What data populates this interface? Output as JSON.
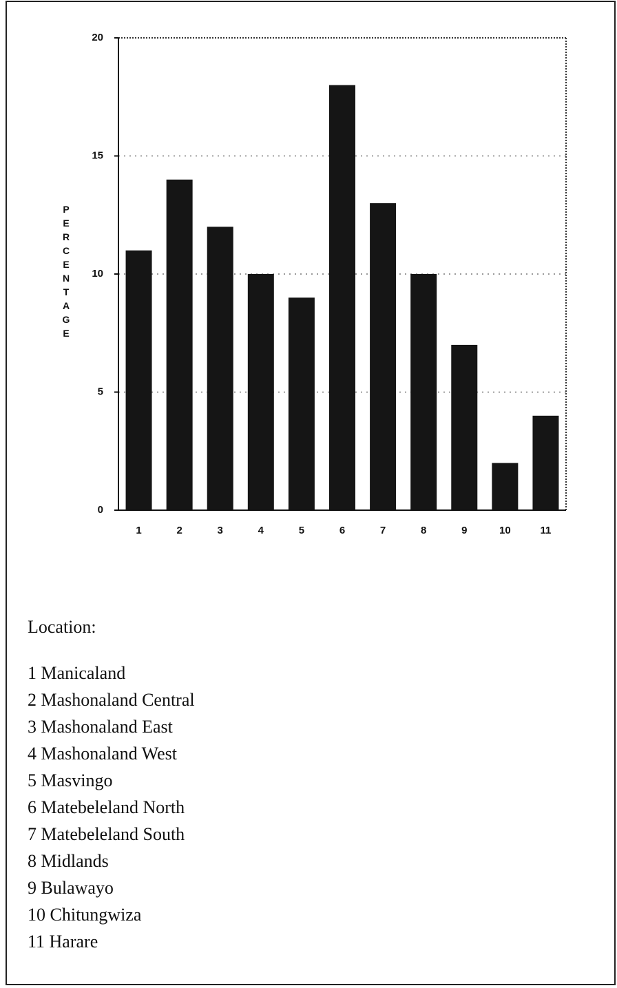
{
  "chart_data": {
    "type": "bar",
    "y_label": "PERCENTAGE",
    "categories": [
      "1",
      "2",
      "3",
      "4",
      "5",
      "6",
      "7",
      "8",
      "9",
      "10",
      "11"
    ],
    "values": [
      11,
      14,
      12,
      10,
      9,
      18,
      13,
      10,
      7,
      2,
      4
    ],
    "color": "#151515",
    "ylim": [
      0,
      20
    ],
    "yticks": [
      0,
      5,
      10,
      15,
      20
    ],
    "grid": true,
    "key_title": "Location:",
    "key_items": [
      "1 Manicaland",
      "2 Mashonaland Central",
      "3 Mashonaland East",
      "4 Mashonaland West",
      "5 Masvingo",
      "6 Matebeleland North",
      "7 Matebeleland South",
      "8 Midlands",
      "9 Bulawayo",
      "10 Chitungwiza",
      "11 Harare"
    ]
  }
}
